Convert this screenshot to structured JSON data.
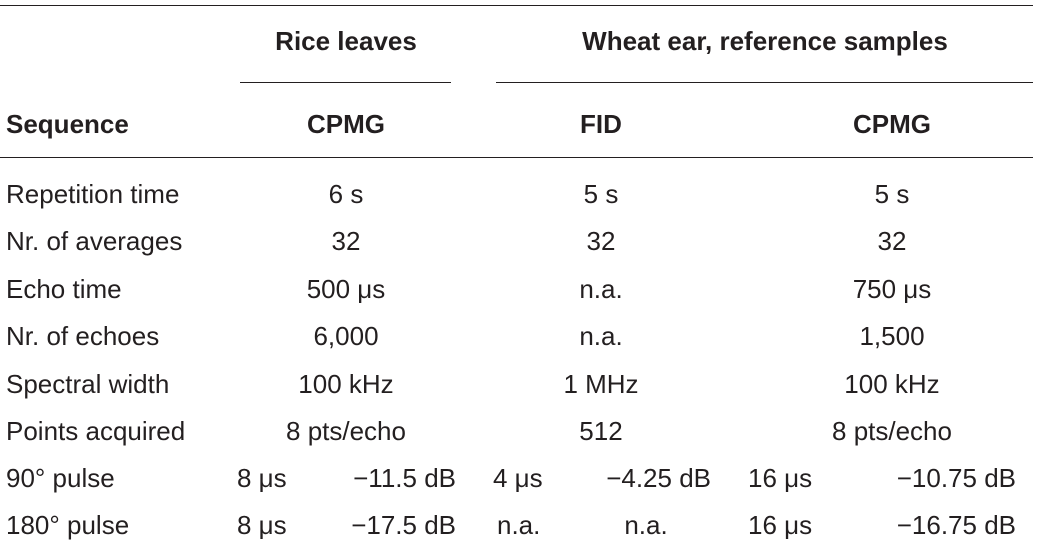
{
  "header": {
    "group_left": "Rice leaves",
    "group_right": "Wheat ear, reference samples",
    "sequence_label": "Sequence",
    "col_cpmg_rice": "CPMG",
    "col_fid": "FID",
    "col_cpmg_wheat": "CPMG"
  },
  "rows": [
    {
      "label": "Repetition time",
      "v1": "6 s",
      "v2": "5 s",
      "v3": "5 s"
    },
    {
      "label": "Nr. of averages",
      "v1": "32",
      "v2": "32",
      "v3": "32"
    },
    {
      "label": "Echo time",
      "v1": "500 μs",
      "v2": "n.a.",
      "v3": "750 μs"
    },
    {
      "label": "Nr. of echoes",
      "v1": "6,000",
      "v2": "n.a.",
      "v3": "1,500"
    },
    {
      "label": "Spectral width",
      "v1": "100 kHz",
      "v2": "1 MHz",
      "v3": "100 kHz"
    },
    {
      "label": "Points acquired",
      "v1": "8 pts/echo",
      "v2": "512",
      "v3": "8 pts/echo"
    }
  ],
  "pulse_rows": [
    {
      "label": "90° pulse",
      "a1": "8 μs",
      "b1": "−11.5 dB",
      "a2": "4 μs",
      "b2": "−4.25 dB",
      "a3": "16 μs",
      "b3": "−10.75 dB"
    },
    {
      "label": "180° pulse",
      "a1": "8 μs",
      "b1": "−17.5 dB",
      "a2": "n.a.",
      "b2": "n.a.",
      "a3": "16 μs",
      "b3": "−16.75 dB"
    }
  ]
}
